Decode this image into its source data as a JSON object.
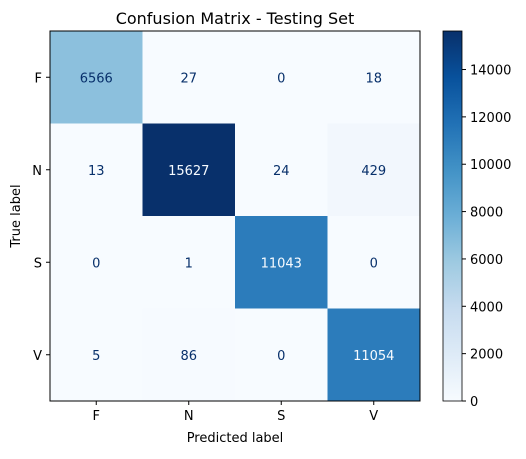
{
  "chart_data": {
    "type": "heatmap",
    "title": "Confusion Matrix - Testing Set",
    "xlabel": "Predicted label",
    "ylabel": "True label",
    "x_categories": [
      "F",
      "N",
      "S",
      "V"
    ],
    "y_categories": [
      "F",
      "N",
      "S",
      "V"
    ],
    "values": [
      [
        6566,
        27,
        0,
        18
      ],
      [
        13,
        15627,
        24,
        429
      ],
      [
        0,
        1,
        11043,
        0
      ],
      [
        5,
        86,
        0,
        11054
      ]
    ],
    "colormap": "Blues",
    "colormap_stops": [
      "#f7fbff",
      "#deebf7",
      "#c6dbef",
      "#9ecae1",
      "#6baed6",
      "#4292c6",
      "#2171b5",
      "#08519c",
      "#08306b"
    ],
    "value_range": [
      0,
      15627
    ],
    "colorbar_ticks": [
      0,
      2000,
      4000,
      6000,
      8000,
      10000,
      12000,
      14000
    ],
    "annotation_dark_color": "#08306b",
    "annotation_light_color": "#f7fbff"
  }
}
